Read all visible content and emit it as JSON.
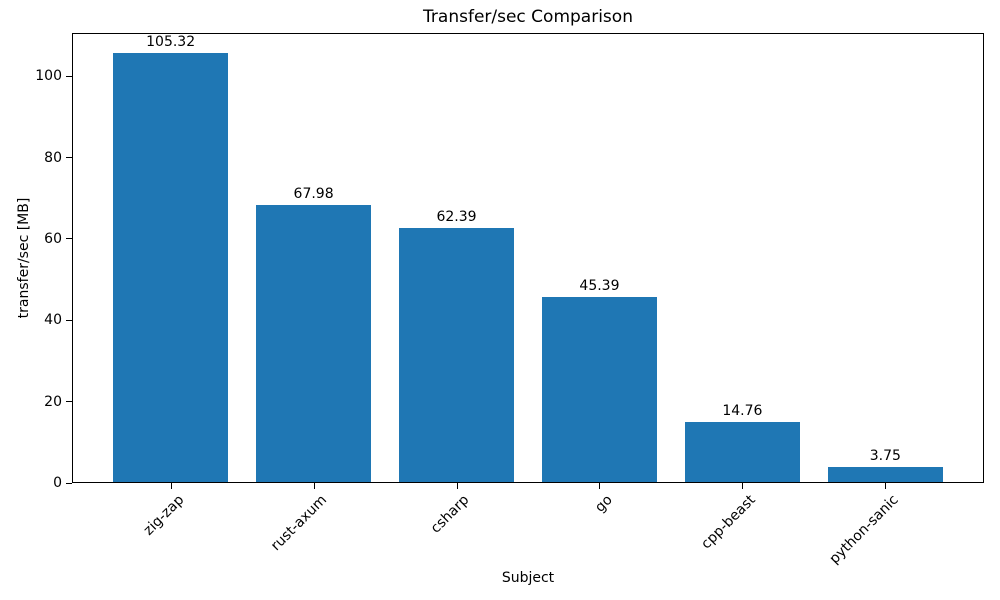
{
  "chart_data": {
    "type": "bar",
    "title": "Transfer/sec Comparison",
    "xlabel": "Subject",
    "ylabel": "transfer/sec [MB]",
    "categories": [
      "zig-zap",
      "rust-axum",
      "csharp",
      "go",
      "cpp-beast",
      "python-sanic"
    ],
    "values": [
      105.32,
      67.98,
      62.39,
      45.39,
      14.76,
      3.75
    ],
    "bar_labels": [
      "105.32",
      "67.98",
      "62.39",
      "45.39",
      "14.76",
      "3.75"
    ],
    "bar_color": "#1f77b4",
    "text_color": "#000000",
    "ylim": [
      0,
      110.6
    ],
    "yticks": [
      0,
      20,
      40,
      60,
      80,
      100
    ],
    "grid": false,
    "legend": null,
    "x_tick_rotation_deg": 45
  }
}
